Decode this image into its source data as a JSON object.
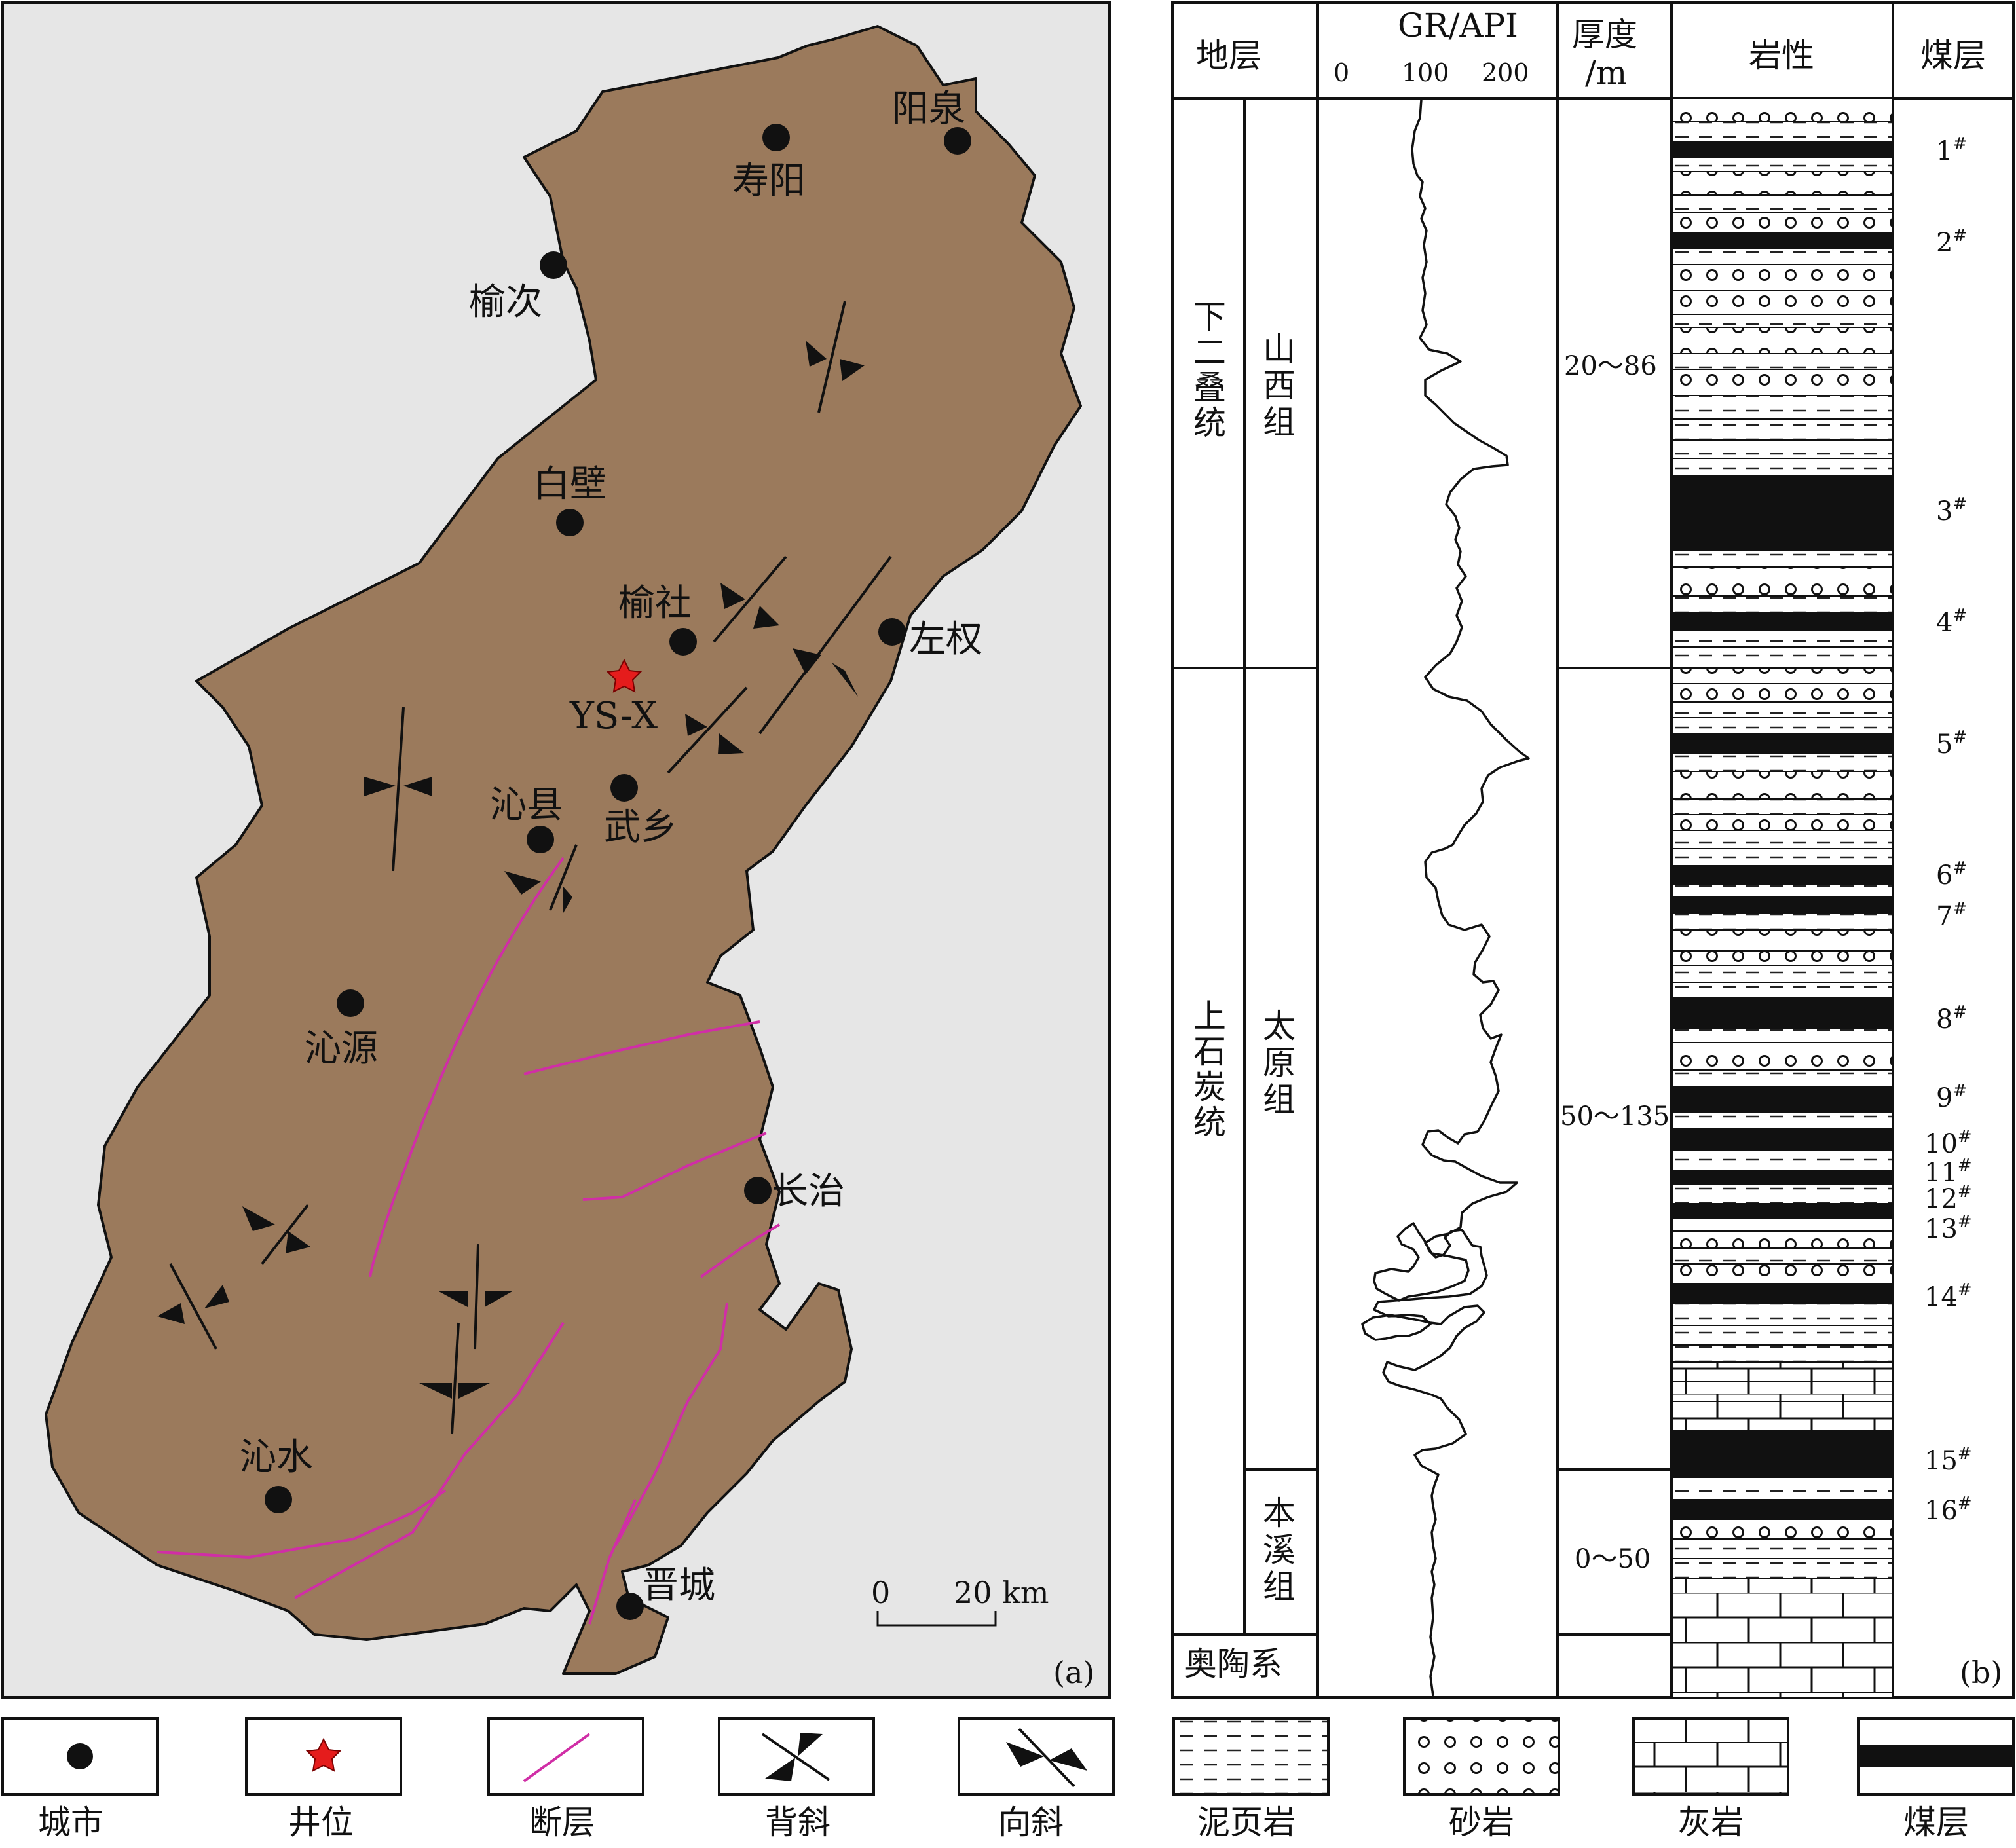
{
  "panel_a": {
    "label": "(a)",
    "colors": {
      "background": "#e6e6e6",
      "basin": "#9b7a5c",
      "fault": "#d02ea6",
      "well": "#e51c1c"
    },
    "cities": [
      {
        "id": "city-yangquan",
        "name": "阳泉"
      },
      {
        "id": "city-shouyang",
        "name": "寿阳"
      },
      {
        "id": "city-yuci",
        "name": "榆次"
      },
      {
        "id": "city-baibi",
        "name": "白壁"
      },
      {
        "id": "city-yushe",
        "name": "榆社"
      },
      {
        "id": "city-zuoquan",
        "name": "左权"
      },
      {
        "id": "city-qinxian",
        "name": "沁县"
      },
      {
        "id": "city-wuxiang",
        "name": "武乡"
      },
      {
        "id": "city-qinyuan",
        "name": "沁源"
      },
      {
        "id": "city-changzhi",
        "name": "长治"
      },
      {
        "id": "city-qinshui",
        "name": "沁水"
      },
      {
        "id": "city-jincheng",
        "name": "晋城"
      }
    ],
    "well": {
      "name": "YS-X"
    },
    "scale_bar": {
      "start": "0",
      "end": "20",
      "unit": "km"
    }
  },
  "panel_b": {
    "label": "(b)",
    "headers": {
      "stratum": "地层",
      "gr": "GR/API",
      "thickness": "厚度\n/m",
      "lithology": "岩性",
      "seam": "煤层"
    },
    "gr_ticks": [
      "0",
      "100",
      "200"
    ],
    "series": [
      {
        "name": "下二叠统",
        "formations": [
          {
            "name": "山西组",
            "thickness": "20～86"
          }
        ]
      },
      {
        "name": "上石炭统",
        "formations": [
          {
            "name": "太原组",
            "thickness": "50～135"
          },
          {
            "name": "本溪组",
            "thickness": "0～50"
          }
        ]
      },
      {
        "name": "奥陶系",
        "formations": []
      }
    ],
    "coal_seams": [
      "1#",
      "2#",
      "3#",
      "4#",
      "5#",
      "6#",
      "7#",
      "8#",
      "9#",
      "10#",
      "11#",
      "12#",
      "13#",
      "14#",
      "15#",
      "16#"
    ]
  },
  "legend": [
    {
      "key": "city",
      "label": "城市"
    },
    {
      "key": "well",
      "label": "井位"
    },
    {
      "key": "fault",
      "label": "断层"
    },
    {
      "key": "anticline",
      "label": "背斜"
    },
    {
      "key": "syncline",
      "label": "向斜"
    },
    {
      "key": "mudstone",
      "label": "泥页岩"
    },
    {
      "key": "sandstone",
      "label": "砂岩"
    },
    {
      "key": "limestone",
      "label": "灰岩"
    },
    {
      "key": "coal",
      "label": "煤层"
    }
  ]
}
